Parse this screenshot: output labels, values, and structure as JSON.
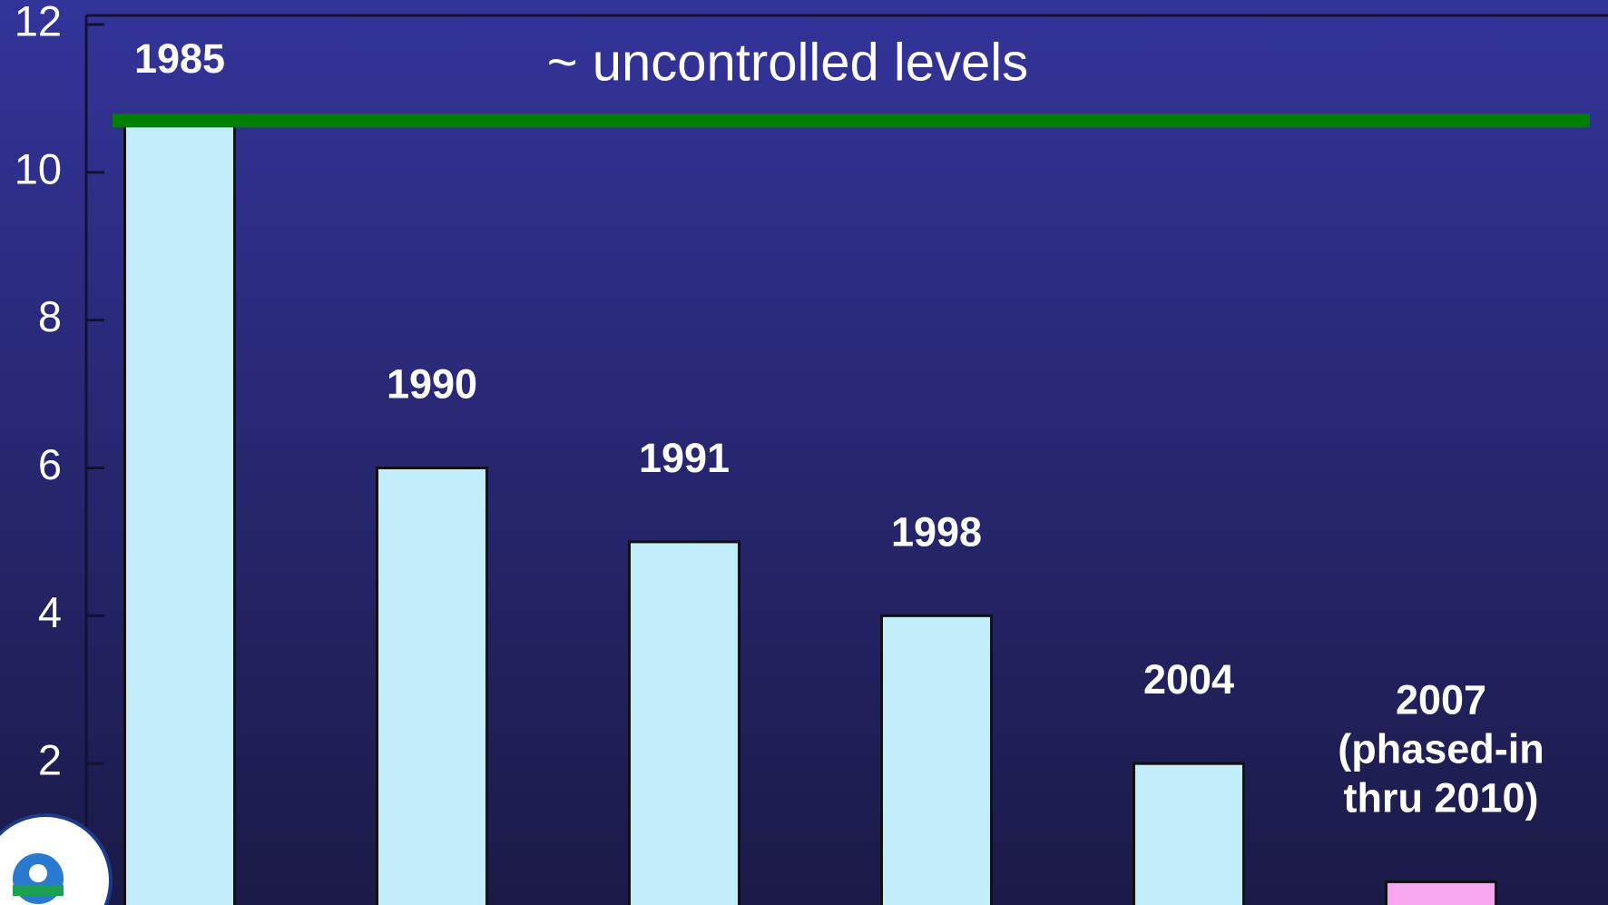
{
  "chart_data": {
    "type": "bar",
    "categories": [
      "1985",
      "1990",
      "1991",
      "1998",
      "2004",
      "2007\n(phased-in\nthru 2010)"
    ],
    "values": [
      10.7,
      6,
      5,
      4,
      2,
      0.4
    ],
    "colors": [
      "#c2eefc",
      "#c2eefc",
      "#c2eefc",
      "#c2eefc",
      "#c2eefc",
      "#f9a6f2"
    ],
    "ylim": [
      0,
      12
    ],
    "yticks": [
      2,
      4,
      6,
      8,
      10,
      12
    ],
    "annotation": {
      "text": "~ uncontrolled levels",
      "value": 10.7,
      "color": "#008000"
    }
  }
}
